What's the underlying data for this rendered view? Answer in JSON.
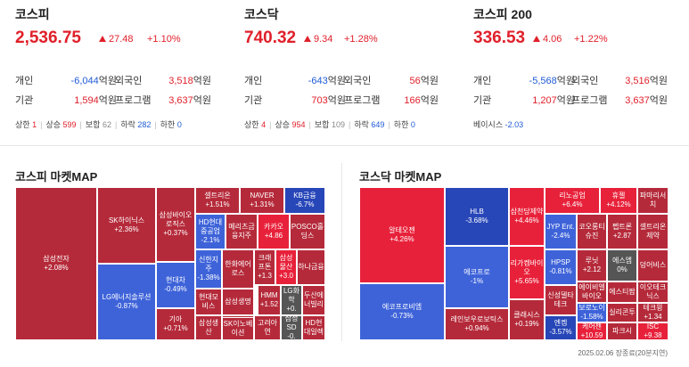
{
  "indices": [
    {
      "title": "코스피",
      "value": "2,536.75",
      "change": "27.48",
      "pct": "+1.10%",
      "rows": [
        {
          "l1": "개인",
          "v1": "-6,044",
          "l2": "외국인",
          "v2": "3,518"
        },
        {
          "l1": "기관",
          "v1": "1,594",
          "l2": "프로그램",
          "v2": "3,637"
        }
      ],
      "stats": {
        "up_limit_label": "상한",
        "up_limit": "1",
        "rise_label": "상승",
        "rise": "599",
        "flat_label": "보합",
        "flat": "62",
        "fall_label": "하락",
        "fall": "282",
        "down_limit_label": "하한",
        "down_limit": "0"
      }
    },
    {
      "title": "코스닥",
      "value": "740.32",
      "change": "9.34",
      "pct": "+1.28%",
      "rows": [
        {
          "l1": "개인",
          "v1": "-643",
          "l2": "외국인",
          "v2": "56"
        },
        {
          "l1": "기관",
          "v1": "703",
          "l2": "프로그램",
          "v2": "166"
        }
      ],
      "stats": {
        "up_limit_label": "상한",
        "up_limit": "4",
        "rise_label": "상승",
        "rise": "954",
        "flat_label": "보합",
        "flat": "109",
        "fall_label": "하락",
        "fall": "649",
        "down_limit_label": "하한",
        "down_limit": "0"
      }
    },
    {
      "title": "코스피 200",
      "value": "336.53",
      "change": "4.06",
      "pct": "+1.22%",
      "rows": [
        {
          "l1": "개인",
          "v1": "-5,568",
          "l2": "외국인",
          "v2": "3,516"
        },
        {
          "l1": "기관",
          "v1": "1,207",
          "l2": "프로그램",
          "v2": "3,637"
        }
      ],
      "basis_label": "베이시스",
      "basis": "-2.03"
    }
  ],
  "unit": "억원",
  "kospi_map_title": "코스피 마켓MAP",
  "kosdaq_map_title": "코스닥 마켓MAP",
  "kospi_map": [
    {
      "name": "삼성전자",
      "chg": "+2.08%"
    },
    {
      "name": "SK하이닉스",
      "chg": "+2.36%"
    },
    {
      "name": "LG에너지솔루션",
      "chg": "-0.87%"
    },
    {
      "name": "삼성바이오로직스",
      "chg": "+0.37%"
    },
    {
      "name": "현대차",
      "chg": "-0.49%"
    },
    {
      "name": "기아",
      "chg": "+0.71%"
    },
    {
      "name": "셀트리온",
      "chg": "+1.51%"
    },
    {
      "name": "NAVER",
      "chg": "+1.31%"
    },
    {
      "name": "KB금융",
      "chg": "-6.7%"
    },
    {
      "name": "HD현대중공업",
      "chg": "-2.1%"
    },
    {
      "name": "메리츠금융지주",
      "chg": ""
    },
    {
      "name": "카카오",
      "chg": "+4.86"
    },
    {
      "name": "POSCO홀딩스",
      "chg": ""
    },
    {
      "name": "신한지주",
      "chg": "-1.38%"
    },
    {
      "name": "한화에어로스",
      "chg": ""
    },
    {
      "name": "크래프톤",
      "chg": "+1.3"
    },
    {
      "name": "삼성물산",
      "chg": "+3.0"
    },
    {
      "name": "하나금융",
      "chg": ""
    },
    {
      "name": "현대모비스",
      "chg": ""
    },
    {
      "name": "삼성생명",
      "chg": ""
    },
    {
      "name": "HMM",
      "chg": "+1.52"
    },
    {
      "name": "LG화학",
      "chg": "+0."
    },
    {
      "name": "두산에너빌리",
      "chg": ""
    },
    {
      "name": "삼성생산",
      "chg": ""
    },
    {
      "name": "한화오션",
      "chg": ""
    },
    {
      "name": "고려아연",
      "chg": ""
    },
    {
      "name": "삼성SD",
      "chg": "-0."
    },
    {
      "name": "HD현대일렉",
      "chg": ""
    },
    {
      "name": "SK이노베이션",
      "chg": ""
    },
    {
      "name": "HD한",
      "chg": ""
    }
  ],
  "kosdaq_map": [
    {
      "name": "알테오젠",
      "chg": "+4.26%"
    },
    {
      "name": "에코프로비엠",
      "chg": "-0.73%"
    },
    {
      "name": "HLB",
      "chg": "-3.68%"
    },
    {
      "name": "에코프로",
      "chg": "-1%"
    },
    {
      "name": "레인보우로보틱스",
      "chg": "+0.94%"
    },
    {
      "name": "삼천당제약",
      "chg": "+4.46%"
    },
    {
      "name": "리가켐바이오",
      "chg": "+5.65%"
    },
    {
      "name": "클래시스",
      "chg": "+0.19%"
    },
    {
      "name": "리노공업",
      "chg": "+6.4%"
    },
    {
      "name": "휴젤",
      "chg": "+4.12%"
    },
    {
      "name": "파마리서치",
      "chg": ""
    },
    {
      "name": "JYP Ent.",
      "chg": "-2.4%"
    },
    {
      "name": "코오롱티슈진",
      "chg": ""
    },
    {
      "name": "펩트론",
      "chg": "+2.87"
    },
    {
      "name": "셀트리온제약",
      "chg": ""
    },
    {
      "name": "HPSP",
      "chg": "-0.81%"
    },
    {
      "name": "루닛",
      "chg": "+2.12"
    },
    {
      "name": "에스엠",
      "chg": "0%"
    },
    {
      "name": "덩어비스",
      "chg": ""
    },
    {
      "name": "에이비엘바이오",
      "chg": ""
    },
    {
      "name": "에스티팜",
      "chg": ""
    },
    {
      "name": "이오테크닉스",
      "chg": ""
    },
    {
      "name": "신성델타테크",
      "chg": ""
    },
    {
      "name": "보로노이",
      "chg": "-1.58%"
    },
    {
      "name": "실리콘투",
      "chg": ""
    },
    {
      "name": "테크윙",
      "chg": "+1.34"
    },
    {
      "name": "엔켐",
      "chg": "-3.57%"
    },
    {
      "name": "케어젠",
      "chg": "+10.59"
    },
    {
      "name": "파크시",
      "chg": ""
    },
    {
      "name": "ISC",
      "chg": "+9.38"
    }
  ],
  "timestamp": "2025.02.06 장종료(20분지연)"
}
